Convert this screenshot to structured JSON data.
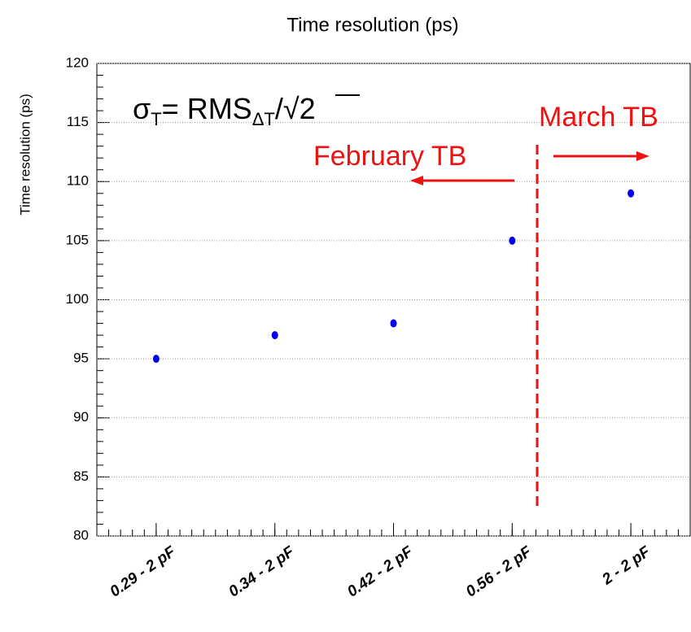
{
  "chart_data": {
    "type": "scatter",
    "title": "Time resolution (ps)",
    "ylabel": "Time resolution (ps)",
    "categories": [
      "0.29 - 2 pF",
      "0.34 - 2 pF",
      "0.42 - 2 pF",
      "0.56 - 2 pF",
      "2 - 2 pF"
    ],
    "values": [
      95,
      97,
      98,
      105,
      109
    ],
    "color": "#0000ee",
    "ylim": [
      80,
      120
    ],
    "yticks": [
      80,
      85,
      90,
      95,
      100,
      105,
      110,
      115,
      120
    ],
    "grid": true,
    "formula": {
      "sigma": "σ",
      "sub": "T",
      "eq": "= RMS",
      "sub2": "ΔT",
      "slash": "/",
      "root": "√2"
    },
    "annotations": {
      "march": "March TB",
      "february": "February TB"
    },
    "annotation_color": "#ee1111"
  }
}
